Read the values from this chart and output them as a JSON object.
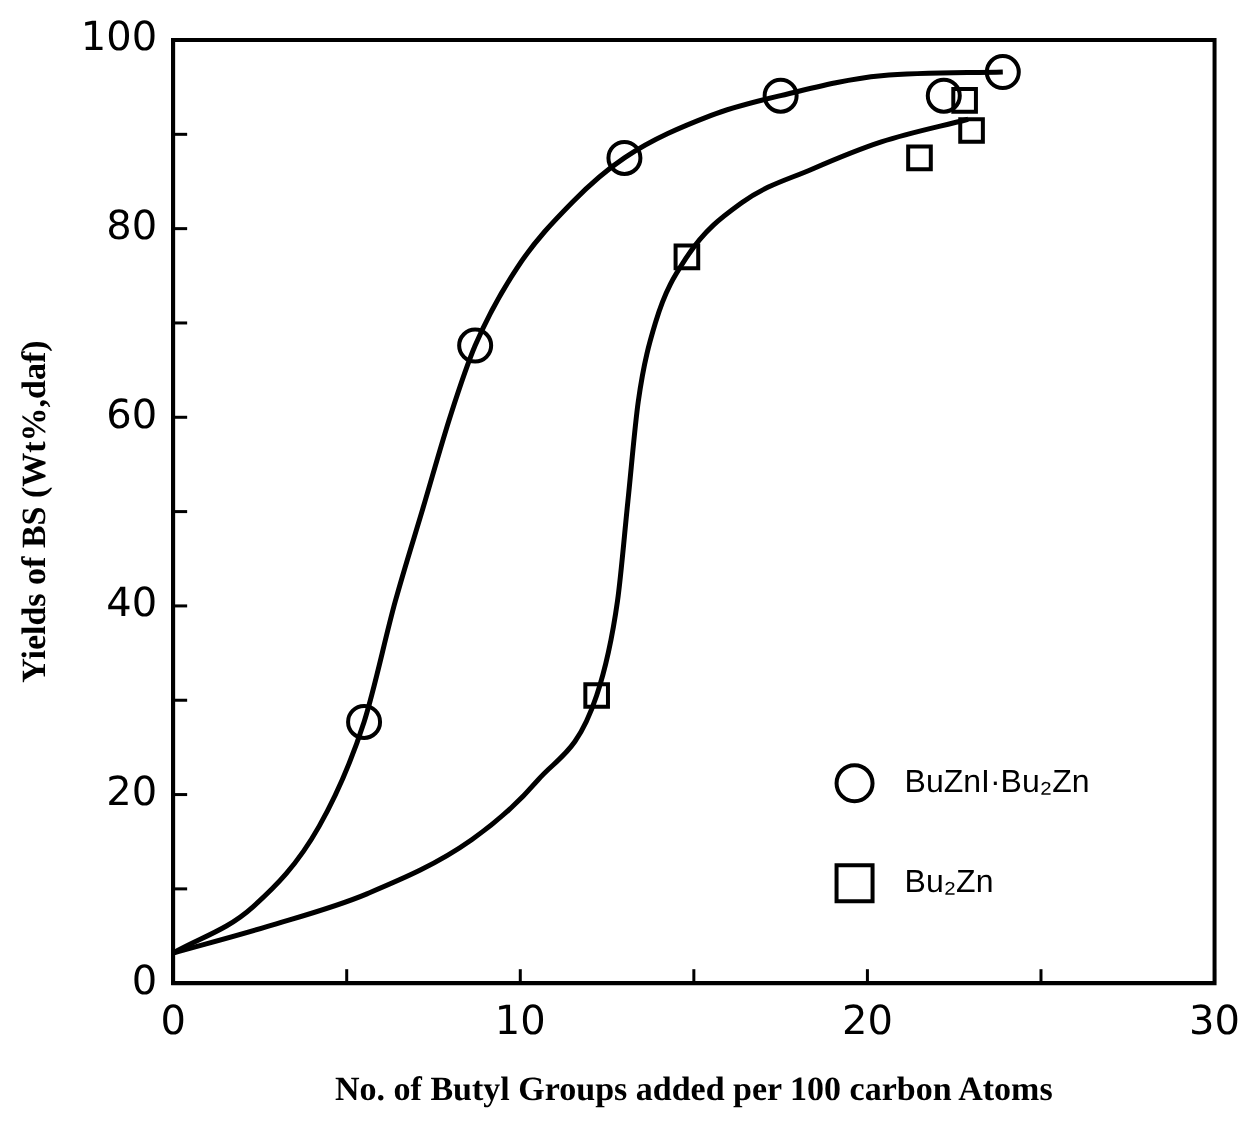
{
  "chart_data": {
    "type": "scatter",
    "xlabel": "No. of Butyl Groups added per 100 carbon Atoms",
    "ylabel": "Yields of BS (Wt%,daf)",
    "xlim": [
      0,
      30
    ],
    "xticks": [
      0,
      {
        "value": 5,
        "label": null
      },
      10,
      {
        "value": 15,
        "label": null
      },
      20,
      {
        "value": 25,
        "label": null
      },
      30
    ],
    "ylim": [
      0,
      100
    ],
    "yticks": [
      0,
      {
        "value": 10,
        "label": null
      },
      20,
      {
        "value": 30,
        "label": null
      },
      40,
      {
        "value": 50,
        "label": null
      },
      60,
      {
        "value": 70,
        "label": null
      },
      80,
      {
        "value": 90,
        "label": null
      },
      100
    ],
    "grid": false,
    "legend": "bottom right",
    "series": [
      {
        "name": "BuZnI·Bu₂Zn",
        "color": "#000000",
        "marker": "circle",
        "x": [
          5.5,
          8.7,
          13.0,
          17.5,
          22.2,
          23.9
        ],
        "values": [
          27.7,
          67.6,
          87.5,
          94.1,
          94.1,
          96.6
        ]
      },
      {
        "name": "Bu₂Zn",
        "color": "#000000",
        "marker": "square",
        "x": [
          12.2,
          14.8,
          21.5,
          22.8,
          23.0
        ],
        "values": [
          30.5,
          77.0,
          87.5,
          93.6,
          90.4
        ]
      },
      {
        "type": "line",
        "color": "#000000",
        "marker": "none",
        "x": [
          0,
          2.3,
          4.2,
          5.5,
          6.4,
          7.2,
          8.0,
          8.7,
          9.9,
          11.5,
          13.0,
          15.5,
          17.5,
          20.4,
          23.9
        ],
        "values": [
          3.2,
          8.1,
          16.6,
          27.7,
          40.5,
          50.4,
          60.3,
          67.6,
          75.8,
          82.8,
          87.5,
          92.0,
          94.1,
          96.2,
          96.6
        ]
      },
      {
        "type": "line",
        "color": "#000000",
        "marker": "none",
        "x": [
          0,
          2.7,
          5.6,
          8.6,
          10.5,
          12.2,
          12.8,
          13.1,
          13.4,
          13.9,
          14.8,
          16.4,
          18.4,
          20.4,
          22.9
        ],
        "values": [
          3.2,
          6.0,
          9.5,
          15.2,
          21.5,
          30.5,
          40.5,
          51.1,
          61.7,
          70.1,
          77.0,
          82.8,
          86.3,
          89.2,
          91.6
        ]
      }
    ]
  }
}
